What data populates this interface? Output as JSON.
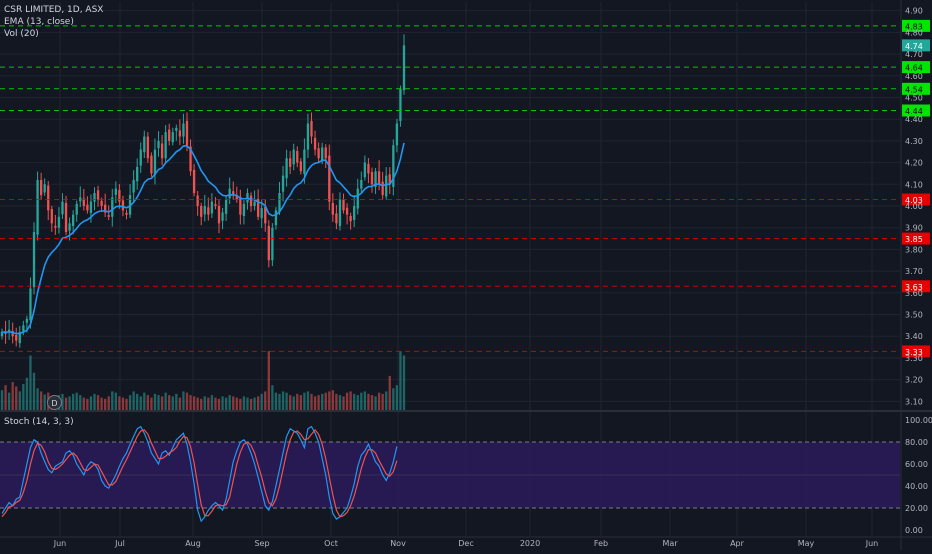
{
  "header": {
    "symbol_line": "CSR LIMITED, 1D, ASX",
    "ema_label": "EMA (13, close)",
    "vol_label": "Vol (20)",
    "stoch_label": "Stoch (14, 3, 3)",
    "badge_label": "D"
  },
  "colors": {
    "background": "#131722",
    "up": "#26a69a",
    "down": "#ef5350",
    "ema": "#2196f3",
    "stoch_k": "#2196f3",
    "stoch_d": "#ef5350",
    "stoch_band": "#2a1a57",
    "green_level": "#00e600",
    "red_level": "#e60000"
  },
  "chart_data": [
    {
      "type": "candlestick",
      "title": "CSR LIMITED, 1D, ASX",
      "x_ticks": [
        "Jun",
        "Jul",
        "Aug",
        "Sep",
        "Oct",
        "Nov",
        "Dec",
        "2020",
        "Feb",
        "Mar",
        "Apr",
        "May",
        "Jun"
      ],
      "y_ticks": [
        "4.90",
        "4.80",
        "4.70",
        "4.60",
        "4.50",
        "4.40",
        "4.30",
        "4.20",
        "4.10",
        "4.00",
        "3.90",
        "3.80",
        "3.70",
        "3.60",
        "3.50",
        "3.40",
        "3.30",
        "3.20",
        "3.10"
      ],
      "ylim": [
        3.06,
        4.94
      ],
      "price_badges": [
        {
          "label": "4.83",
          "value": 4.83,
          "kind": "green"
        },
        {
          "label": "4.74",
          "value": 4.74,
          "kind": "last"
        },
        {
          "label": "4.64",
          "value": 4.64,
          "kind": "green"
        },
        {
          "label": "4.54",
          "value": 4.54,
          "kind": "green"
        },
        {
          "label": "4.44",
          "value": 4.44,
          "kind": "green"
        },
        {
          "label": "4.03",
          "value": 4.03,
          "kind": "red"
        },
        {
          "label": "3.85",
          "value": 3.85,
          "kind": "red"
        },
        {
          "label": "3.63",
          "value": 3.63,
          "kind": "red"
        },
        {
          "label": "3.33",
          "value": 3.33,
          "kind": "red"
        }
      ],
      "closes": [
        3.42,
        3.41,
        3.43,
        3.4,
        3.38,
        3.42,
        3.45,
        3.48,
        3.62,
        3.88,
        4.12,
        4.05,
        4.1,
        3.98,
        3.92,
        3.9,
        3.95,
        4.02,
        3.88,
        3.92,
        3.96,
        4.01,
        4.04,
        4.0,
        3.98,
        4.02,
        4.06,
        4.03,
        4.0,
        3.97,
        3.95,
        4.04,
        4.08,
        4.02,
        3.98,
        3.96,
        4.05,
        4.12,
        4.18,
        4.26,
        4.32,
        4.22,
        4.15,
        4.26,
        4.3,
        4.22,
        4.34,
        4.3,
        4.34,
        4.36,
        4.32,
        4.38,
        4.28,
        4.16,
        4.06,
        4.0,
        3.95,
        4.0,
        3.96,
        4.02,
        4.0,
        3.92,
        3.97,
        4.03,
        4.08,
        4.05,
        4.03,
        3.96,
        4.01,
        4.06,
        4.0,
        4.02,
        3.95,
        3.99,
        3.92,
        3.75,
        3.9,
        3.98,
        4.06,
        4.14,
        4.22,
        4.18,
        4.26,
        4.2,
        4.16,
        4.26,
        4.38,
        4.32,
        4.26,
        4.22,
        4.27,
        4.22,
        4.02,
        3.96,
        3.92,
        4.03,
        3.98,
        3.96,
        3.93,
        4.0,
        4.08,
        4.12,
        4.2,
        4.15,
        4.1,
        4.16,
        4.1,
        4.05,
        4.14,
        4.1,
        4.28,
        4.38,
        4.54,
        4.74
      ],
      "volume_ylim": [
        0,
        100
      ],
      "volumes": [
        32,
        40,
        28,
        45,
        38,
        30,
        42,
        52,
        88,
        60,
        35,
        30,
        25,
        28,
        22,
        20,
        24,
        26,
        20,
        22,
        26,
        28,
        24,
        20,
        18,
        22,
        26,
        24,
        20,
        18,
        22,
        30,
        28,
        22,
        20,
        18,
        24,
        30,
        26,
        22,
        28,
        24,
        20,
        26,
        24,
        22,
        28,
        24,
        22,
        26,
        20,
        30,
        28,
        24,
        22,
        20,
        18,
        22,
        20,
        24,
        20,
        18,
        22,
        20,
        24,
        22,
        20,
        18,
        22,
        20,
        18,
        20,
        22,
        26,
        30,
        95,
        40,
        28,
        26,
        30,
        28,
        24,
        22,
        26,
        24,
        28,
        30,
        26,
        22,
        24,
        26,
        28,
        30,
        32,
        26,
        24,
        22,
        28,
        30,
        26,
        24,
        28,
        30,
        26,
        24,
        22,
        28,
        26,
        30,
        55,
        35,
        40,
        95,
        88
      ]
    },
    {
      "type": "line",
      "title": "Stoch (14, 3, 3)",
      "y_ticks": [
        "100.00",
        "80.00",
        "60.00",
        "40.00",
        "20.00",
        "0.00"
      ],
      "ylim": [
        0,
        100
      ],
      "band": [
        20,
        80
      ],
      "series": [
        {
          "values": [
            15,
            20,
            25,
            22,
            28,
            30,
            45,
            60,
            75,
            82,
            80,
            70,
            62,
            55,
            52,
            58,
            60,
            62,
            70,
            72,
            68,
            60,
            55,
            50,
            58,
            62,
            60,
            55,
            45,
            40,
            38,
            44,
            50,
            58,
            65,
            70,
            78,
            85,
            92,
            94,
            88,
            80,
            70,
            65,
            60,
            70,
            72,
            68,
            75,
            82,
            85,
            88,
            78,
            62,
            42,
            18,
            8,
            12,
            18,
            22,
            25,
            22,
            18,
            28,
            45,
            62,
            72,
            80,
            82,
            78,
            70,
            60,
            48,
            35,
            22,
            18,
            26,
            40,
            55,
            70,
            85,
            92,
            90,
            88,
            82,
            75,
            92,
            94,
            88,
            80,
            65,
            50,
            30,
            15,
            10,
            12,
            16,
            20,
            30,
            42,
            58,
            68,
            72,
            78,
            70,
            62,
            58,
            50,
            45,
            52,
            62,
            76
          ]
        },
        {
          "values": [
            12,
            16,
            21,
            22,
            25,
            27,
            34,
            45,
            60,
            72,
            79,
            77,
            71,
            62,
            56,
            55,
            57,
            60,
            64,
            68,
            70,
            67,
            61,
            55,
            54,
            57,
            60,
            59,
            53,
            47,
            41,
            41,
            44,
            51,
            58,
            64,
            71,
            78,
            85,
            90,
            91,
            87,
            79,
            72,
            65,
            65,
            67,
            70,
            72,
            75,
            81,
            85,
            84,
            76,
            61,
            41,
            23,
            13,
            13,
            17,
            22,
            23,
            22,
            23,
            30,
            45,
            60,
            71,
            78,
            80,
            77,
            70,
            59,
            48,
            35,
            25,
            22,
            28,
            40,
            55,
            70,
            82,
            89,
            90,
            87,
            82,
            83,
            87,
            91,
            87,
            78,
            65,
            48,
            32,
            18,
            12,
            13,
            16,
            22,
            31,
            43,
            56,
            66,
            73,
            73,
            70,
            63,
            57,
            51,
            49,
            53,
            63
          ]
        }
      ]
    }
  ]
}
